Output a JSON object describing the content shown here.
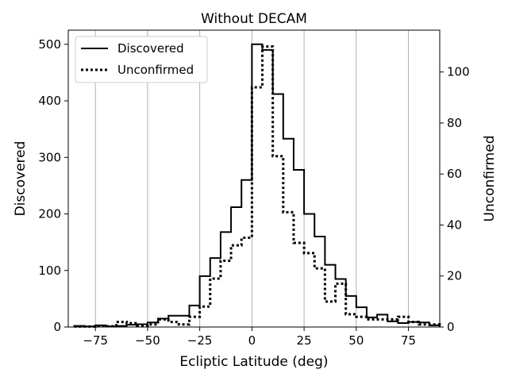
{
  "chart_data": {
    "type": "histogram",
    "title": "Without DECAM",
    "xlabel": "Ecliptic Latitude (deg)",
    "ylabel_left": "Discovered",
    "ylabel_right": "Unconfirmed",
    "xlim": [
      -88,
      90
    ],
    "ylim_left": [
      0,
      525
    ],
    "ylim_right": [
      0,
      116.4
    ],
    "x_ticks": [
      -75,
      -50,
      -25,
      0,
      25,
      50,
      75
    ],
    "x_tick_labels": [
      "−75",
      "−50",
      "−25",
      "0",
      "25",
      "50",
      "75"
    ],
    "y_left_ticks": [
      0,
      100,
      200,
      300,
      400,
      500
    ],
    "y_right_ticks": [
      0,
      20,
      40,
      60,
      80,
      100
    ],
    "grid": "vertical at x ticks",
    "legend_position": "top-left",
    "bin_edges": [
      -85,
      -80,
      -75,
      -70,
      -65,
      -60,
      -55,
      -50,
      -45,
      -40,
      -35,
      -30,
      -25,
      -20,
      -15,
      -10,
      -5,
      0,
      5,
      10,
      15,
      20,
      25,
      30,
      35,
      40,
      45,
      50,
      55,
      60,
      65,
      70,
      75,
      80,
      85,
      90
    ],
    "series": [
      {
        "name": "Discovered",
        "axis": "left",
        "style": "solid",
        "color": "#000000",
        "values": [
          2,
          1,
          3,
          1,
          2,
          4,
          5,
          8,
          15,
          20,
          20,
          38,
          90,
          122,
          168,
          212,
          260,
          500,
          490,
          412,
          333,
          278,
          200,
          160,
          110,
          85,
          55,
          35,
          17,
          22,
          10,
          7,
          9,
          8,
          3
        ]
      },
      {
        "name": "Unconfirmed",
        "axis": "right",
        "style": "dotted",
        "color": "#000000",
        "values": [
          0.2,
          0.2,
          0.4,
          0.3,
          2,
          1.5,
          0.5,
          1,
          3,
          2,
          1,
          4,
          8,
          19,
          26,
          32,
          35,
          94,
          110,
          67,
          45,
          33,
          29,
          23,
          10,
          17,
          5,
          4,
          3,
          3,
          3,
          4,
          2,
          1,
          1
        ]
      }
    ]
  }
}
